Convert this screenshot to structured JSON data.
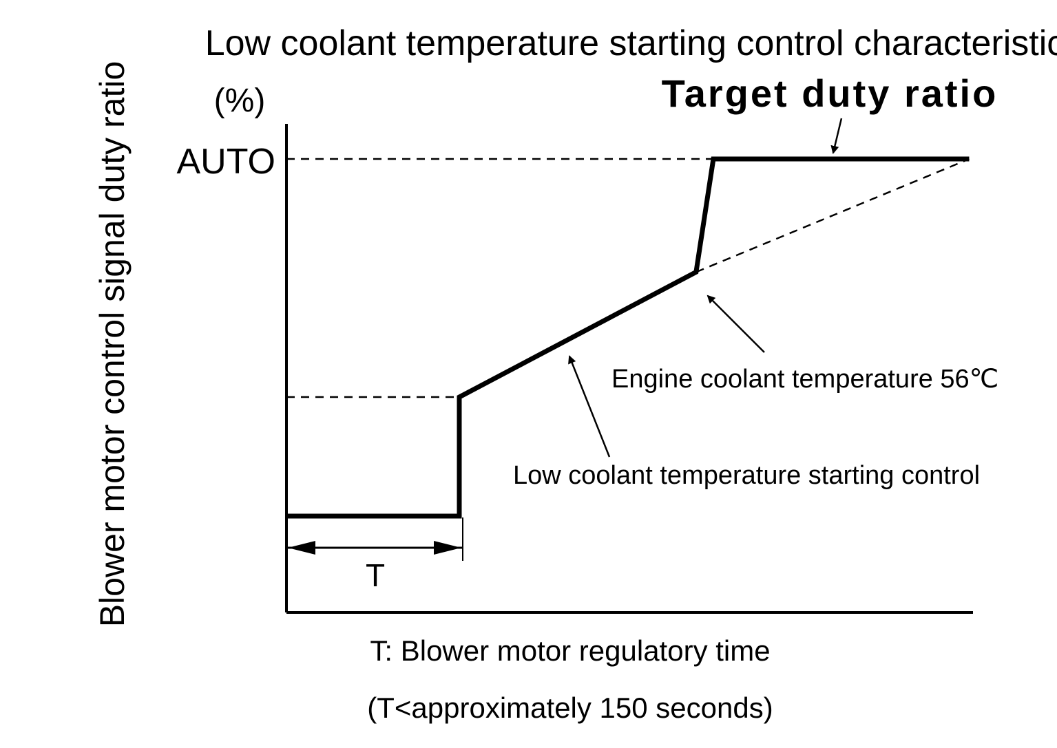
{
  "chart_data": {
    "type": "line",
    "title": "Low coolant temperature starting control characteristic",
    "ylabel": "Blower motor control signal duty ratio",
    "y_unit": "(%)",
    "y_tick_labels": [
      "AUTO"
    ],
    "xlabel": "",
    "series": [
      {
        "name": "Target duty ratio",
        "style": "solid-thick",
        "points": [
          {
            "x": 0,
            "y": 0
          },
          {
            "x": 1,
            "y": 0
          },
          {
            "x": 1,
            "y": 1
          },
          {
            "x": 2.37,
            "y": 2.05
          },
          {
            "x": 2.47,
            "y": 3
          },
          {
            "x": 3.95,
            "y": 3
          }
        ]
      },
      {
        "style": "dashed",
        "points": [
          {
            "x": 2.37,
            "y": 2.05
          },
          {
            "x": 3.95,
            "y": 3
          }
        ]
      }
    ],
    "reference_lines": [
      {
        "style": "dashed",
        "from": {
          "x": 0,
          "y": 3
        },
        "to": {
          "x": 2.47,
          "y": 3
        }
      },
      {
        "style": "dashed",
        "from": {
          "x": 0,
          "y": 1
        },
        "to": {
          "x": 1,
          "y": 1
        }
      }
    ],
    "annotations": {
      "target": "Target duty ratio",
      "coolant_temp": "Engine coolant temperature 56℃",
      "starting_control": "Low coolant temperature starting control",
      "t_interval": "T"
    },
    "notes": [
      "T: Blower motor regulatory time",
      "(T<approximately 150 seconds)"
    ],
    "grid": false,
    "legend": "none"
  }
}
